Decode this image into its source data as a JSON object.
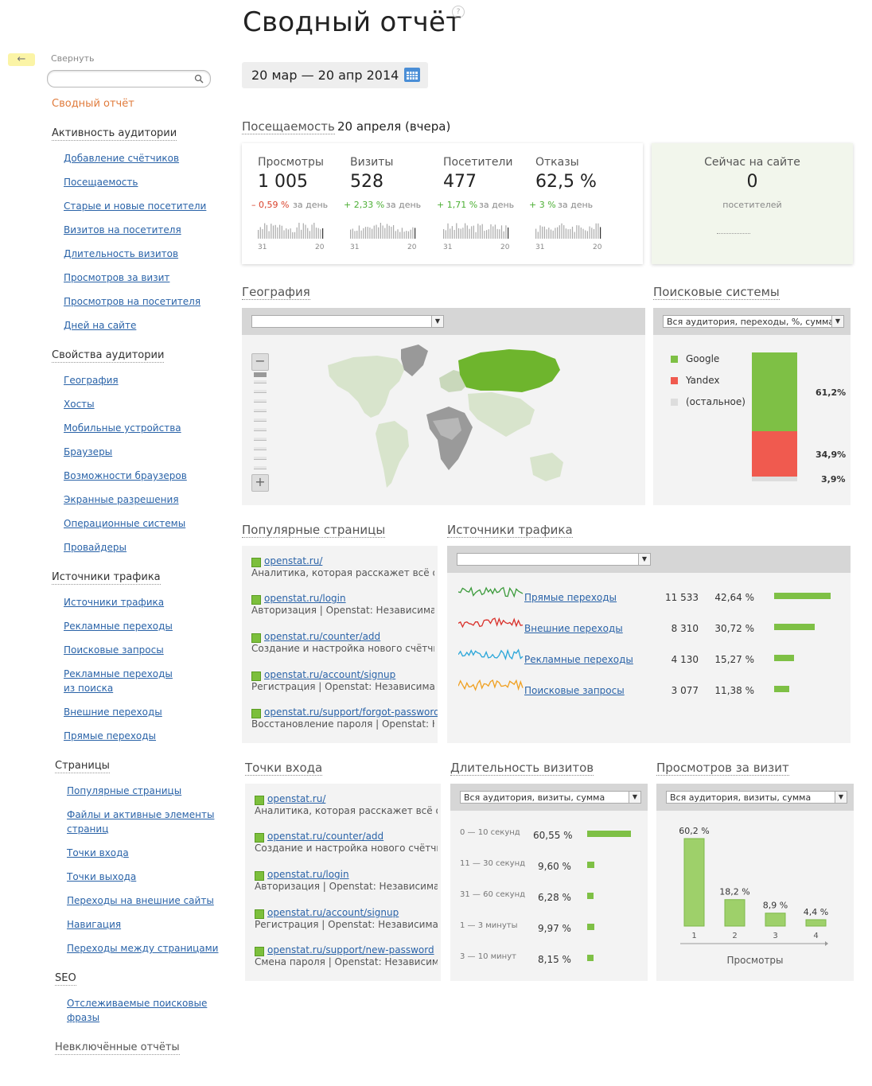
{
  "sidebar": {
    "back_glyph": "←",
    "collapse": "Свернуть",
    "current": "Сводный отчёт",
    "sections": [
      {
        "title": "Активность аудитории",
        "items": [
          "Добавление счётчиков",
          "Посещаемость",
          "Старые и новые посетители",
          "Визитов на посетителя",
          "Длительность визитов",
          "Просмотров за визит",
          "Просмотров на посетителя",
          "Дней на сайте"
        ]
      },
      {
        "title": "Свойства аудитории",
        "items": [
          "География",
          "Хосты",
          "Мобильные устройства",
          "Браузеры",
          "Возможности браузеров",
          "Экранные разрешения",
          "Операционные системы",
          "Провайдеры"
        ]
      },
      {
        "title": "Источники трафика",
        "items": [
          "Источники трафика",
          "Рекламные переходы",
          "Поисковые запросы",
          "Рекламные переходы",
          "из поиска",
          "Внешние переходы",
          "Прямые переходы"
        ]
      },
      {
        "title": "Страницы",
        "items": [
          "Популярные страницы",
          "Файлы и активные элементы",
          "страниц",
          "Точки входа",
          "Точки выхода",
          "Переходы на внешние сайты",
          "Навигация",
          "Переходы между страницами"
        ]
      },
      {
        "title": "SEO",
        "items": [
          "Отслеживаемые поисковые",
          "фразы"
        ]
      },
      {
        "title": "Невключённые отчёты",
        "items": []
      }
    ]
  },
  "header": {
    "title": "Сводный отчёт",
    "help": "?",
    "date_range": "20 мар — 20 апр 2014"
  },
  "attendance": {
    "title": "Посещаемость",
    "subtitle": "20 апреля (вчера)",
    "metrics": [
      {
        "label": "Просмотры",
        "value": "1 005",
        "change": "– 0,59 %",
        "per_day": "за день",
        "tick_start": "31",
        "tick_end": "20"
      },
      {
        "label": "Визиты",
        "value": "528",
        "change": "+ 2,33 %",
        "per_day": "за день",
        "tick_start": "31",
        "tick_end": "20"
      },
      {
        "label": "Посетители",
        "value": "477",
        "change": "+ 1,71 %",
        "per_day": "за день",
        "tick_start": "31",
        "tick_end": "20"
      },
      {
        "label": "Отказы",
        "value": "62,5 %",
        "change": "+ 3 %",
        "per_day": "за день",
        "tick_start": "31",
        "tick_end": "20"
      }
    ],
    "colors": {
      "negative": "#d9412b",
      "positive": "#4caf34"
    }
  },
  "online": {
    "title": "Сейчас на сайте",
    "value": "0",
    "unit": "посетителей"
  },
  "geography": {
    "title": "География",
    "select": ""
  },
  "search_engines": {
    "title": "Поисковые системы",
    "select": "Вся аудитория, переходы, %, сумма",
    "legend": [
      {
        "name": "Google",
        "color": "#7ec045"
      },
      {
        "name": "Yandex",
        "color": "#f05a4f"
      },
      {
        "name": "(остальное)",
        "color": "#dddddd"
      }
    ],
    "values": [
      "61,2%",
      "34,9%",
      "3,9%"
    ]
  },
  "popular_pages": {
    "title": "Популярные страницы",
    "items": [
      {
        "url": "openstat.ru/",
        "desc": "Аналитика, которая расскажет всё о ваш"
      },
      {
        "url": "openstat.ru/login",
        "desc": "Авторизация | Openstat: Независимая ана"
      },
      {
        "url": "openstat.ru/counter/add",
        "desc": "Создание и настройка нового счётчика |"
      },
      {
        "url": "openstat.ru/account/signup",
        "desc": "Регистрация | Openstat: Независимая ана"
      },
      {
        "url": "openstat.ru/support/forgot-password",
        "desc": "Восстановление пароля | Openstat: Незав"
      }
    ]
  },
  "traffic_sources": {
    "title": "Источники трафика",
    "select": "",
    "rows": [
      {
        "name": "Прямые переходы",
        "count": "11 533",
        "pct": "42,64 %",
        "share": 42.64,
        "color": "#3a9a3a"
      },
      {
        "name": "Внешние переходы",
        "count": "8 310",
        "pct": "30,72 %",
        "share": 30.72,
        "color": "#d9302a"
      },
      {
        "name": "Рекламные переходы",
        "count": "4 130",
        "pct": "15,27 %",
        "share": 15.27,
        "color": "#2aa6d9"
      },
      {
        "name": "Поисковые запросы",
        "count": "3 077",
        "pct": "11,38 %",
        "share": 11.38,
        "color": "#f0a020"
      }
    ]
  },
  "entry_points": {
    "title": "Точки входа",
    "items": [
      {
        "url": "openstat.ru/",
        "desc": "Аналитика, которая расскажет всё о ваш"
      },
      {
        "url": "openstat.ru/counter/add",
        "desc": "Создание и настройка нового счётчика |"
      },
      {
        "url": "openstat.ru/login",
        "desc": "Авторизация | Openstat: Независимая ана"
      },
      {
        "url": "openstat.ru/account/signup",
        "desc": "Регистрация | Openstat: Независимая ана"
      },
      {
        "url": "openstat.ru/support/new-password",
        "desc": "Смена пароля | Openstat: Независимая ана"
      }
    ]
  },
  "visit_duration": {
    "title": "Длительность визитов",
    "select": "Вся аудитория, визиты, сумма",
    "rows": [
      {
        "label": "0 — 10 секунд",
        "pct": "60,55 %",
        "share": 60.55
      },
      {
        "label": "11 — 30 секунд",
        "pct": "9,60 %",
        "share": 9.6
      },
      {
        "label": "31 — 60 секунд",
        "pct": "6,28 %",
        "share": 6.28
      },
      {
        "label": "1 — 3 минуты",
        "pct": "9,97 %",
        "share": 9.97
      },
      {
        "label": "3 — 10 минут",
        "pct": "8,15 %",
        "share": 8.15
      }
    ]
  },
  "views_per_visit": {
    "title": "Просмотров за визит",
    "select": "Вся аудитория, визиты, сумма",
    "xlabel": "Просмотры"
  },
  "chart_data": {
    "type": "bar",
    "categories": [
      "1",
      "2",
      "3",
      "4"
    ],
    "values": [
      60.2,
      18.2,
      8.9,
      4.4
    ],
    "labels": [
      "60,2 %",
      "18,2 %",
      "8,9 %",
      "4,4 %"
    ],
    "xlabel": "Просмотры",
    "ylabel": "",
    "ylim": [
      0,
      60.2
    ]
  }
}
